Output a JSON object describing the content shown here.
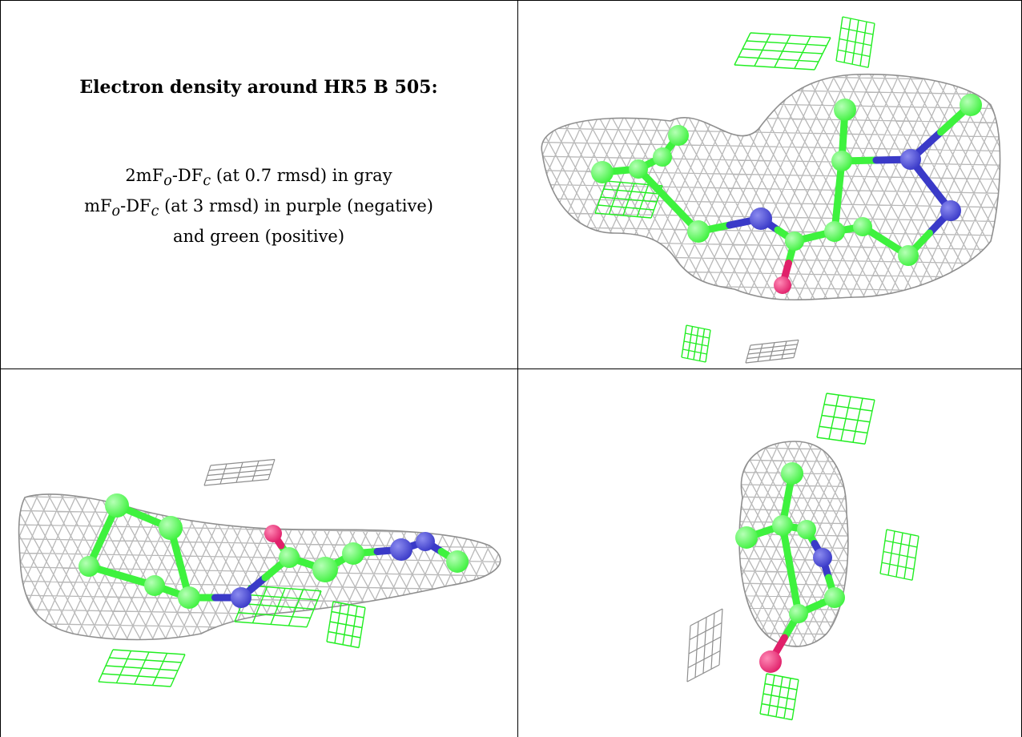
{
  "caption": {
    "title": "Electron density around HR5 B 505:",
    "line1": {
      "prefix": "2mF",
      "sub1": "o",
      "mid": "-DF",
      "sub2": "c",
      "suffix": " (at 0.7 rmsd) in gray"
    },
    "line2": {
      "prefix": "mF",
      "sub1": "o",
      "mid": "-DF",
      "sub2": "c",
      "suffix": " (at 3 rmsd) in purple (negative)"
    },
    "line3": "and green (positive)"
  },
  "panels": [
    {
      "view": "top-right"
    },
    {
      "view": "bottom-left"
    },
    {
      "view": "bottom-right"
    }
  ],
  "colors": {
    "mesh_gray": "#b8b8b8",
    "mesh_gray_dark": "#8f8f8f",
    "mesh_green": "#22ee22",
    "carbon": "#3ef23e",
    "nitrogen": "#3a3ac8",
    "oxygen": "#e0206a"
  }
}
